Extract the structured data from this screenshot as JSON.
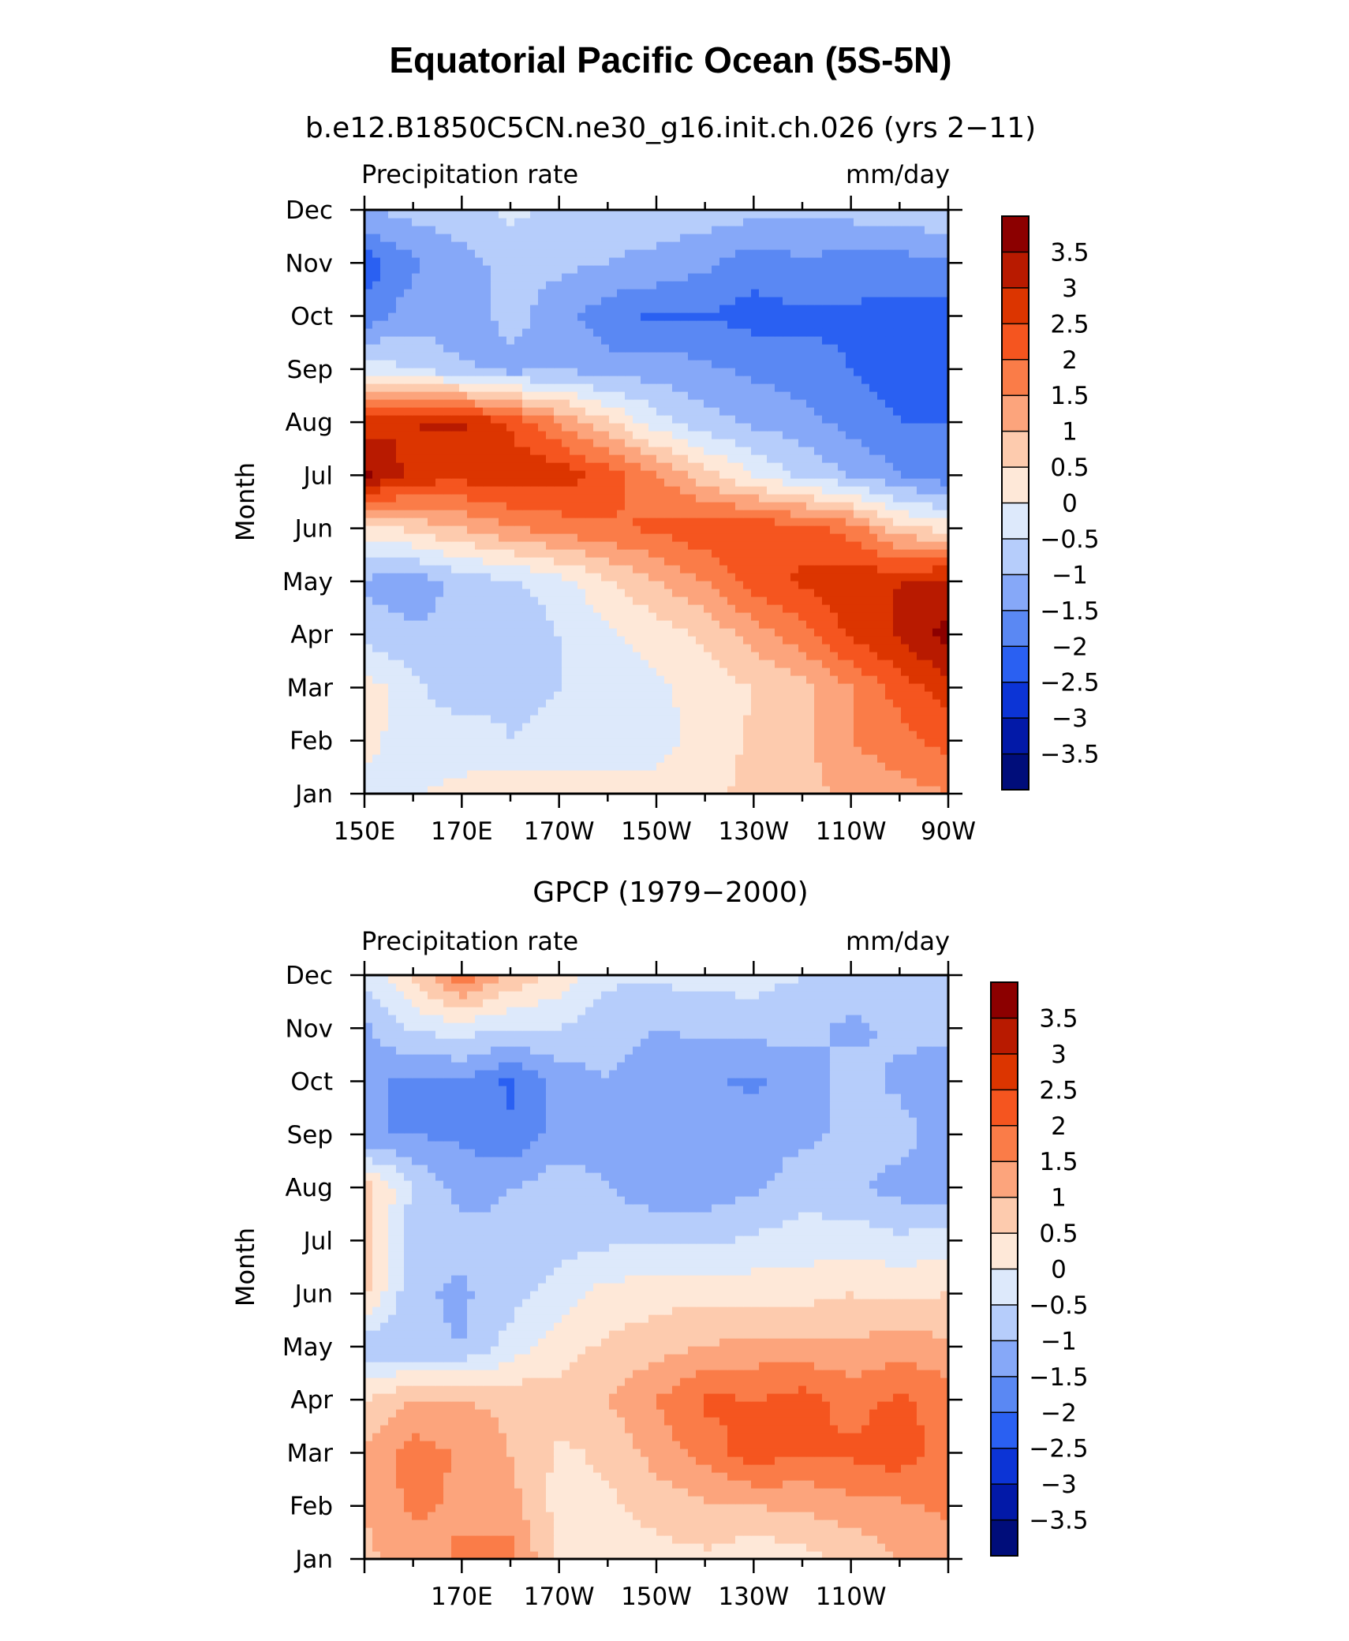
{
  "figure": {
    "title": "Equatorial Pacific Ocean (5S-5N)"
  },
  "levels": [
    "3.5",
    "3",
    "2.5",
    "2",
    "1.5",
    "1",
    "0.5",
    "0",
    "−0.5",
    "−1",
    "−1.5",
    "−2",
    "−2.5",
    "−3",
    "−3.5"
  ],
  "palette": [
    "#8c0000",
    "#b81a00",
    "#dc3500",
    "#f5551f",
    "#fa7c48",
    "#fca47c",
    "#fdcbae",
    "#fee8d8",
    "#dde9fb",
    "#b6cdfb",
    "#86a8f8",
    "#5a88f3",
    "#2a60f2",
    "#0c34d6",
    "#0219a8",
    "#000d7a"
  ],
  "chart_data": [
    {
      "type": "heatmap",
      "title": "b.e12.B1850C5CN.ne30_g16.init.ch.026 (yrs 2−11)",
      "left_label": "Precipitation rate",
      "right_label": "mm/day",
      "ylabel": "Month",
      "xlabel": "",
      "x_ticks": [
        "150E",
        "170E",
        "170W",
        "150W",
        "130W",
        "110W",
        "90W"
      ],
      "y_ticks": [
        "Jan",
        "Feb",
        "Mar",
        "Apr",
        "May",
        "Jun",
        "Jul",
        "Aug",
        "Sep",
        "Oct",
        "Nov",
        "Dec"
      ],
      "xlim": [
        150,
        270
      ],
      "ylim": [
        0,
        11
      ],
      "x": [
        150,
        160,
        170,
        180,
        190,
        200,
        210,
        220,
        230,
        240,
        250,
        260,
        270
      ],
      "z": [
        [
          -0.3,
          0.0,
          0.1,
          0.4,
          0.3,
          0.2,
          0.2,
          0.4,
          0.6,
          0.8,
          1.1,
          1.3,
          1.5
        ],
        [
          0.2,
          -0.3,
          -0.2,
          -0.5,
          -0.4,
          -0.3,
          -0.2,
          0.2,
          0.6,
          0.9,
          1.5,
          1.8,
          2.2
        ],
        [
          0.3,
          -0.4,
          -0.8,
          -0.6,
          -0.5,
          -0.3,
          -0.1,
          0.2,
          0.5,
          0.8,
          1.5,
          2.2,
          2.8
        ],
        [
          -0.7,
          -0.9,
          -0.9,
          -1.0,
          -0.5,
          -0.1,
          0.2,
          0.6,
          1.2,
          1.8,
          2.6,
          3.1,
          3.7
        ],
        [
          -1.1,
          -1.3,
          -0.8,
          -0.6,
          -0.2,
          0.4,
          1.0,
          1.5,
          2.2,
          2.6,
          2.8,
          3.0,
          3.2
        ],
        [
          0.3,
          0.6,
          1.0,
          1.4,
          1.7,
          1.9,
          2.1,
          2.4,
          2.4,
          2.2,
          1.8,
          0.7,
          0.3
        ],
        [
          3.6,
          2.8,
          2.7,
          2.9,
          2.8,
          2.3,
          1.6,
          0.7,
          0.0,
          -0.6,
          -1.0,
          -1.5,
          -1.8
        ],
        [
          2.8,
          3.0,
          3.1,
          2.4,
          1.5,
          0.6,
          -0.3,
          -0.8,
          -1.1,
          -1.3,
          -1.7,
          -2.0,
          -2.0
        ],
        [
          -0.2,
          -0.5,
          -0.9,
          -1.2,
          -1.0,
          -1.3,
          -1.2,
          -1.4,
          -1.6,
          -1.8,
          -2.0,
          -2.2,
          -2.2
        ],
        [
          -1.8,
          -1.2,
          -1.4,
          -0.8,
          -1.3,
          -1.8,
          -2.1,
          -2.0,
          -2.2,
          -2.1,
          -2.1,
          -2.2,
          -2.3
        ],
        [
          -2.3,
          -1.6,
          -1.2,
          -0.8,
          -0.9,
          -1.0,
          -1.1,
          -1.4,
          -1.8,
          -1.6,
          -1.7,
          -1.7,
          -1.6
        ],
        [
          -1.0,
          -0.8,
          -0.7,
          -0.4,
          -0.6,
          -0.9,
          -0.8,
          -0.7,
          -0.8,
          -0.9,
          -0.8,
          -0.7,
          -0.5
        ]
      ]
    },
    {
      "type": "heatmap",
      "title": "GPCP (1979−2000)",
      "left_label": "Precipitation rate",
      "right_label": "mm/day",
      "ylabel": "Month",
      "xlabel": "",
      "x_ticks": [
        "170E",
        "170W",
        "150W",
        "130W",
        "110W"
      ],
      "y_ticks": [
        "Jan",
        "Feb",
        "Mar",
        "Apr",
        "May",
        "Jun",
        "Jul",
        "Aug",
        "Sep",
        "Oct",
        "Nov",
        "Dec"
      ],
      "xlim": [
        150,
        270
      ],
      "ylim": [
        0,
        11
      ],
      "x": [
        150,
        160,
        170,
        180,
        190,
        200,
        210,
        220,
        230,
        240,
        250,
        260,
        270
      ],
      "z": [
        [
          0.9,
          1.2,
          1.6,
          1.7,
          0.4,
          0.3,
          0.3,
          0.4,
          0.1,
          0.3,
          0.6,
          1.0,
          1.2
        ],
        [
          1.0,
          1.6,
          1.4,
          1.2,
          0.3,
          0.4,
          0.7,
          0.9,
          1.0,
          1.1,
          1.3,
          1.4,
          1.6
        ],
        [
          1.1,
          1.8,
          1.4,
          1.0,
          0.4,
          0.6,
          1.2,
          1.7,
          2.3,
          2.0,
          2.1,
          2.3,
          1.7
        ],
        [
          0.5,
          1.0,
          1.0,
          0.9,
          0.7,
          1.0,
          1.5,
          2.1,
          2.0,
          2.2,
          1.8,
          2.1,
          1.8
        ],
        [
          -0.8,
          -0.9,
          -1.0,
          -0.3,
          0.3,
          0.6,
          0.8,
          1.0,
          1.2,
          1.2,
          1.1,
          1.3,
          1.1
        ],
        [
          0.6,
          -0.9,
          -1.1,
          -0.7,
          -0.3,
          0.2,
          0.3,
          0.4,
          0.3,
          0.3,
          0.5,
          0.4,
          0.5
        ],
        [
          0.9,
          -1.0,
          -0.8,
          -0.9,
          -0.7,
          -0.6,
          -0.6,
          -0.6,
          -0.4,
          -0.3,
          -0.2,
          -0.4,
          -0.2
        ],
        [
          0.8,
          -0.5,
          -1.2,
          -1.0,
          -0.7,
          -1.0,
          -1.3,
          -1.3,
          -1.1,
          -0.7,
          -0.9,
          -1.2,
          -1.3
        ],
        [
          -1.5,
          -1.5,
          -1.6,
          -1.9,
          -1.3,
          -1.2,
          -1.4,
          -1.2,
          -1.3,
          -1.1,
          -0.9,
          -0.8,
          -1.3
        ],
        [
          -1.4,
          -1.6,
          -1.5,
          -2.1,
          -1.3,
          -1.0,
          -1.3,
          -1.4,
          -1.6,
          -1.2,
          -0.8,
          -1.1,
          -1.4
        ],
        [
          -1.1,
          -0.4,
          -0.3,
          -0.5,
          -0.5,
          -0.8,
          -1.0,
          -0.9,
          -0.8,
          -0.9,
          -1.1,
          -0.9,
          -0.8
        ],
        [
          -0.4,
          0.5,
          1.9,
          0.9,
          0.3,
          -0.4,
          -0.4,
          -0.3,
          -0.3,
          -0.5,
          -0.7,
          -0.7,
          -0.8
        ]
      ]
    }
  ]
}
